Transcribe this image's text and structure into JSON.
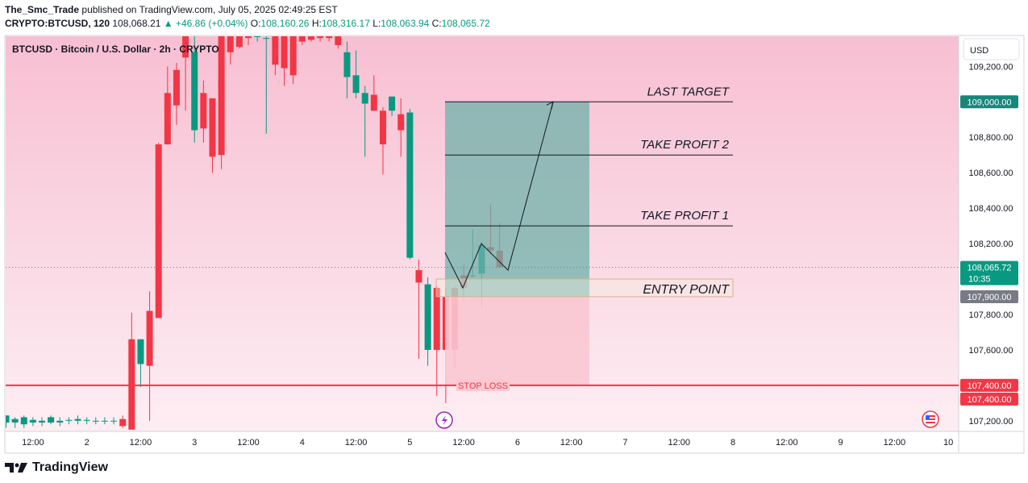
{
  "header": {
    "publisher": "The_Smc_Trade",
    "published_text": "published on TradingView.com, July 05, 2025 02:49:25 EST",
    "symbol_line": "CRYPTO:BTCUSD, 120",
    "last": "108,068.21",
    "change": "▲ +46.86 (+0.04%)",
    "o_label": "O:",
    "o": "108,160.26",
    "h_label": "H:",
    "h": "108,316.17",
    "l_label": "L:",
    "l": "108,063.94",
    "c_label": "C:",
    "c": "108,065.72"
  },
  "chart_title": "BTCUSD · Bitcoin / U.S. Dollar · 2h · CRYPTO",
  "currency_button": "USD",
  "footer_brand": "TradingView",
  "colors": {
    "up": "#089981",
    "down": "#f23645",
    "bg_top": "#f7bfd2",
    "bg_bottom": "#fdeef3",
    "target_zone": "#6fb1a9",
    "stop_zone": "#f9c8d1",
    "stop_line": "#f23645"
  },
  "chart_data": {
    "type": "candlestick",
    "title": "BTCUSD · Bitcoin / U.S. Dollar · 2h · CRYPTO",
    "ylim": [
      107140,
      109370
    ],
    "y_ticks": [
      107200,
      107400,
      107600,
      107800,
      108000,
      108200,
      108400,
      108600,
      108800,
      109000,
      109200
    ],
    "y_tick_labels": [
      "107,200.00",
      "107,400.00",
      "107,600.00",
      "107,800.00",
      "108,000.00",
      "108,200.00",
      "108,400.00",
      "108,600.00",
      "108,800.00",
      "109,000.00",
      "109,200.00"
    ],
    "x_tick_labels": [
      "12:00",
      "2",
      "12:00",
      "3",
      "12:00",
      "4",
      "12:00",
      "5",
      "12:00",
      "6",
      "12:00",
      "7",
      "12:00",
      "8",
      "12:00",
      "9",
      "12:00",
      "10"
    ],
    "x_tick_index": [
      3,
      9,
      15,
      21,
      27,
      33,
      39,
      45,
      51,
      57,
      63,
      69,
      75,
      81,
      87,
      93,
      99,
      105
    ],
    "candles": [
      {
        "o": 107190,
        "h": 107230,
        "l": 107160,
        "c": 107230
      },
      {
        "o": 107190,
        "h": 107220,
        "l": 107160,
        "c": 107210
      },
      {
        "o": 107180,
        "h": 107230,
        "l": 107160,
        "c": 107220
      },
      {
        "o": 107190,
        "h": 107220,
        "l": 107170,
        "c": 107205
      },
      {
        "o": 107190,
        "h": 107220,
        "l": 107170,
        "c": 107200
      },
      {
        "o": 107190,
        "h": 107230,
        "l": 107180,
        "c": 107220
      },
      {
        "o": 107190,
        "h": 107220,
        "l": 107170,
        "c": 107200
      },
      {
        "o": 107200,
        "h": 107220,
        "l": 107180,
        "c": 107205
      },
      {
        "o": 107200,
        "h": 107230,
        "l": 107180,
        "c": 107210
      },
      {
        "o": 107200,
        "h": 107220,
        "l": 107180,
        "c": 107205
      },
      {
        "o": 107200,
        "h": 107220,
        "l": 107180,
        "c": 107200
      },
      {
        "o": 107200,
        "h": 107220,
        "l": 107180,
        "c": 107200
      },
      {
        "o": 107200,
        "h": 107220,
        "l": 107180,
        "c": 107200
      },
      {
        "o": 107210,
        "h": 107230,
        "l": 107160,
        "c": 107170
      },
      {
        "o": 107660,
        "h": 107810,
        "l": 107150,
        "c": 107150
      },
      {
        "o": 107520,
        "h": 107660,
        "l": 107390,
        "c": 107660
      },
      {
        "o": 107820,
        "h": 107930,
        "l": 107200,
        "c": 107510
      },
      {
        "o": 108760,
        "h": 108770,
        "l": 107790,
        "c": 107780
      },
      {
        "o": 109050,
        "h": 109200,
        "l": 108760,
        "c": 108760
      },
      {
        "o": 109180,
        "h": 109220,
        "l": 108870,
        "c": 108980
      },
      {
        "o": 109370,
        "h": 109420,
        "l": 108950,
        "c": 109250
      },
      {
        "o": 108840,
        "h": 109420,
        "l": 108770,
        "c": 109280
      },
      {
        "o": 109050,
        "h": 109120,
        "l": 108770,
        "c": 108850
      },
      {
        "o": 109020,
        "h": 109020,
        "l": 108600,
        "c": 108690
      },
      {
        "o": 109370,
        "h": 109400,
        "l": 108620,
        "c": 108700
      },
      {
        "o": 109370,
        "h": 109420,
        "l": 109210,
        "c": 109280
      },
      {
        "o": 109370,
        "h": 109400,
        "l": 109300,
        "c": 109310
      },
      {
        "o": 109370,
        "h": 109400,
        "l": 109320,
        "c": 109360
      },
      {
        "o": 109370,
        "h": 109420,
        "l": 109340,
        "c": 109370
      },
      {
        "o": 109360,
        "h": 109400,
        "l": 108820,
        "c": 109360
      },
      {
        "o": 109370,
        "h": 109420,
        "l": 109150,
        "c": 109210
      },
      {
        "o": 109370,
        "h": 109420,
        "l": 109090,
        "c": 109190
      },
      {
        "o": 109370,
        "h": 109400,
        "l": 109100,
        "c": 109150
      },
      {
        "o": 109370,
        "h": 109400,
        "l": 109320,
        "c": 109340
      },
      {
        "o": 109370,
        "h": 109420,
        "l": 109340,
        "c": 109350
      },
      {
        "o": 109370,
        "h": 109400,
        "l": 109340,
        "c": 109360
      },
      {
        "o": 109370,
        "h": 109420,
        "l": 109340,
        "c": 109360
      },
      {
        "o": 109370,
        "h": 109420,
        "l": 109300,
        "c": 109320
      },
      {
        "o": 109140,
        "h": 109340,
        "l": 109020,
        "c": 109280
      },
      {
        "o": 109050,
        "h": 109290,
        "l": 109020,
        "c": 109150
      },
      {
        "o": 108990,
        "h": 109090,
        "l": 108690,
        "c": 109050
      },
      {
        "o": 109040,
        "h": 109150,
        "l": 108960,
        "c": 108950
      },
      {
        "o": 108950,
        "h": 108970,
        "l": 108590,
        "c": 108760
      },
      {
        "o": 108950,
        "h": 109030,
        "l": 108920,
        "c": 109030
      },
      {
        "o": 108930,
        "h": 109020,
        "l": 108690,
        "c": 108840
      },
      {
        "o": 108120,
        "h": 108960,
        "l": 108110,
        "c": 108940
      },
      {
        "o": 108050,
        "h": 108110,
        "l": 107550,
        "c": 107980
      },
      {
        "o": 107600,
        "h": 108010,
        "l": 107510,
        "c": 107970
      },
      {
        "o": 107950,
        "h": 107960,
        "l": 107340,
        "c": 107600
      },
      {
        "o": 107900,
        "h": 107950,
        "l": 107300,
        "c": 107600
      },
      {
        "o": 107950,
        "h": 107960,
        "l": 107500,
        "c": 107600
      },
      {
        "o": 108020,
        "h": 108080,
        "l": 107870,
        "c": 107950
      },
      {
        "o": 108020,
        "h": 108280,
        "l": 108010,
        "c": 108020
      },
      {
        "o": 108030,
        "h": 108210,
        "l": 107830,
        "c": 108190
      },
      {
        "o": 108180,
        "h": 108420,
        "l": 108140,
        "c": 108160
      },
      {
        "o": 108160,
        "h": 108316,
        "l": 108064,
        "c": 108066
      }
    ]
  },
  "annotations": {
    "last_target": "LAST TARGET",
    "take_profit_2": "TAKE PROFIT 2",
    "take_profit_1": "TAKE PROFIT 1",
    "entry_point": "ENTRY POINT",
    "stop_loss": "STOP LOSS",
    "target_price": 109000,
    "tp2_price": 108700,
    "tp1_price": 108300,
    "entry_top": 108000,
    "entry_bottom": 107900,
    "stop_price": 107400,
    "path_prices": [
      108150,
      107950,
      108200,
      108050,
      109000
    ]
  },
  "price_labels": {
    "target": "109,000.00",
    "last": "108,065.72",
    "countdown": "10:35",
    "entry": "107,900.00",
    "stop_a": "107,400.00",
    "stop_b": "107,400.00"
  }
}
